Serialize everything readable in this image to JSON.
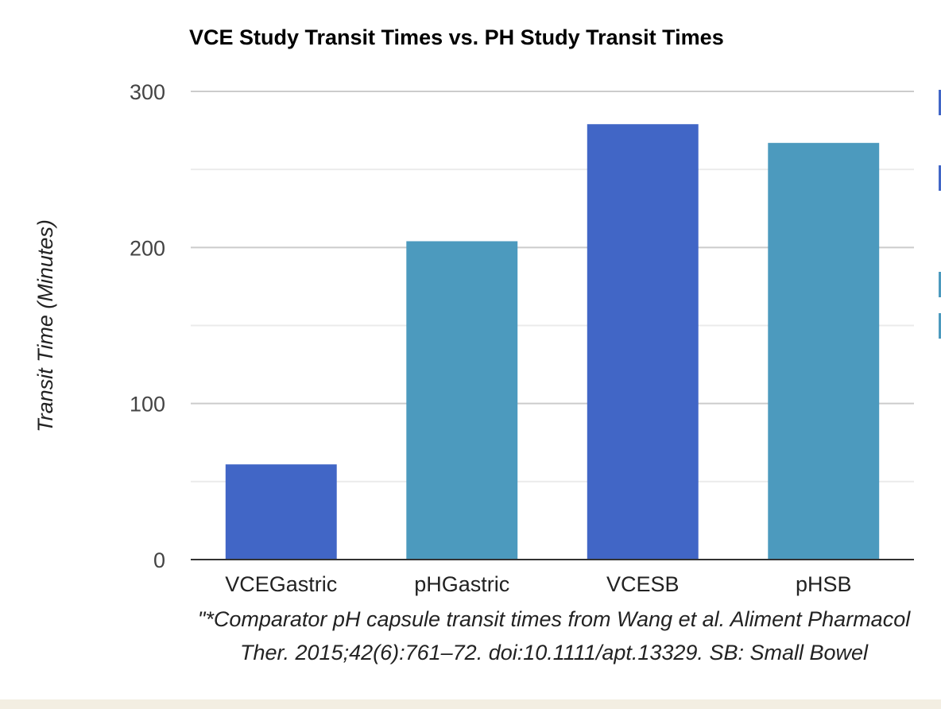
{
  "chart_data": {
    "type": "bar",
    "title": "VCE Study Transit Times vs. PH Study Transit Times",
    "ylabel": "Transit Time (Minutes)",
    "xlabel": "",
    "categories": [
      "VCEGastric",
      "pHGastric",
      "VCESB",
      "pHSB"
    ],
    "values": [
      61,
      204,
      279,
      267
    ],
    "bar_colors": [
      "#4166c6",
      "#4c9abe",
      "#4166c6",
      "#4c9abe"
    ],
    "ylim": [
      0,
      300
    ],
    "yticks": [
      0,
      100,
      200,
      300
    ],
    "grid": true,
    "footnote": "\"*Comparator pH capsule transit times from Wang et al. Aliment Pharmacol Ther. 2015;42(6):761–72. doi:10.1111/apt.13329. SB: Small Bowel"
  },
  "legend_colors": [
    "#4166c6",
    "#4166c6",
    "#4c9abe",
    "#4c9abe"
  ]
}
